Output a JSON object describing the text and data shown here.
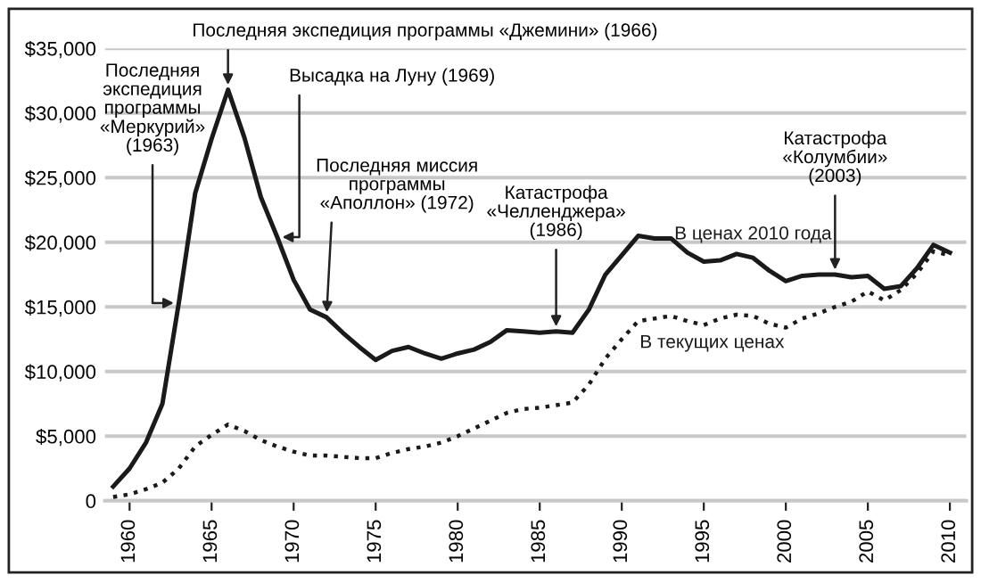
{
  "chart_data": {
    "type": "line",
    "x": [
      1959,
      1960,
      1961,
      1962,
      1963,
      1964,
      1965,
      1966,
      1967,
      1968,
      1969,
      1970,
      1971,
      1972,
      1973,
      1974,
      1975,
      1976,
      1977,
      1978,
      1979,
      1980,
      1981,
      1982,
      1983,
      1984,
      1985,
      1986,
      1987,
      1988,
      1989,
      1990,
      1991,
      1992,
      1993,
      1994,
      1995,
      1996,
      1997,
      1998,
      1999,
      2000,
      2001,
      2002,
      2003,
      2004,
      2005,
      2006,
      2007,
      2008,
      2009,
      2010
    ],
    "series": [
      {
        "name": "В ценах 2010 года",
        "color": "#1a1a1a",
        "line_style": "solid",
        "values": [
          1100,
          2500,
          4500,
          7500,
          15300,
          23800,
          28000,
          31800,
          28100,
          23500,
          20400,
          17100,
          14800,
          14200,
          13000,
          11900,
          10900,
          11600,
          11900,
          11400,
          11000,
          11400,
          11700,
          12300,
          13200,
          13100,
          13000,
          13100,
          13000,
          14800,
          17500,
          19000,
          20500,
          20300,
          20300,
          19200,
          18500,
          18600,
          19100,
          18800,
          17800,
          17000,
          17400,
          17500,
          17500,
          17300,
          17400,
          16400,
          16600,
          18000,
          19800,
          19200
        ]
      },
      {
        "name": "В текущих ценах",
        "color": "#1a1a1a",
        "line_style": "dotted",
        "values": [
          300,
          500,
          900,
          1400,
          2500,
          4200,
          5100,
          5900,
          5400,
          4700,
          4200,
          3800,
          3500,
          3500,
          3400,
          3300,
          3300,
          3700,
          4000,
          4200,
          4500,
          5000,
          5600,
          6200,
          6800,
          7100,
          7200,
          7400,
          7600,
          9000,
          11000,
          12500,
          13900,
          14100,
          14300,
          13900,
          13600,
          14100,
          14400,
          14300,
          13700,
          13400,
          14100,
          14500,
          15000,
          15400,
          16200,
          15500,
          16300,
          17600,
          19300,
          19000
        ]
      }
    ],
    "xlim": [
      1958.5,
      2011
    ],
    "xticks": [
      1960,
      1965,
      1970,
      1975,
      1980,
      1985,
      1990,
      1995,
      2000,
      2005,
      2010
    ],
    "ylim": [
      0,
      35000
    ],
    "yticks": [
      {
        "value": 0,
        "label": "0"
      },
      {
        "value": 5000,
        "label": "$5,000"
      },
      {
        "value": 10000,
        "label": "$10,000"
      },
      {
        "value": 15000,
        "label": "$15,000"
      },
      {
        "value": 20000,
        "label": "$20,000"
      },
      {
        "value": 25000,
        "label": "$25,000"
      },
      {
        "value": 30000,
        "label": "$30,000"
      },
      {
        "value": 35000,
        "label": "$35,000"
      }
    ],
    "grid": "y",
    "legend": false,
    "annotations": [
      {
        "text": "Последняя\nэкспедиция\nпрограммы\n«Меркурий»\n(1963)",
        "x": 1963,
        "y": 15300
      },
      {
        "text": "Последняя экспедиция программы «Джемини» (1966)",
        "x": 1966,
        "y": 31800
      },
      {
        "text": "Высадка на Луну (1969)",
        "x": 1969,
        "y": 20400
      },
      {
        "text": "Последняя миссия\nпрограммы\n«Аполлон» (1972)",
        "x": 1972,
        "y": 14200
      },
      {
        "text": "Катастрофа\n«Челленджера»\n(1986)",
        "x": 1986,
        "y": 13100
      },
      {
        "text": "Катастрофа\n«Колумбии»\n(2003)",
        "x": 2003,
        "y": 17500
      }
    ]
  }
}
